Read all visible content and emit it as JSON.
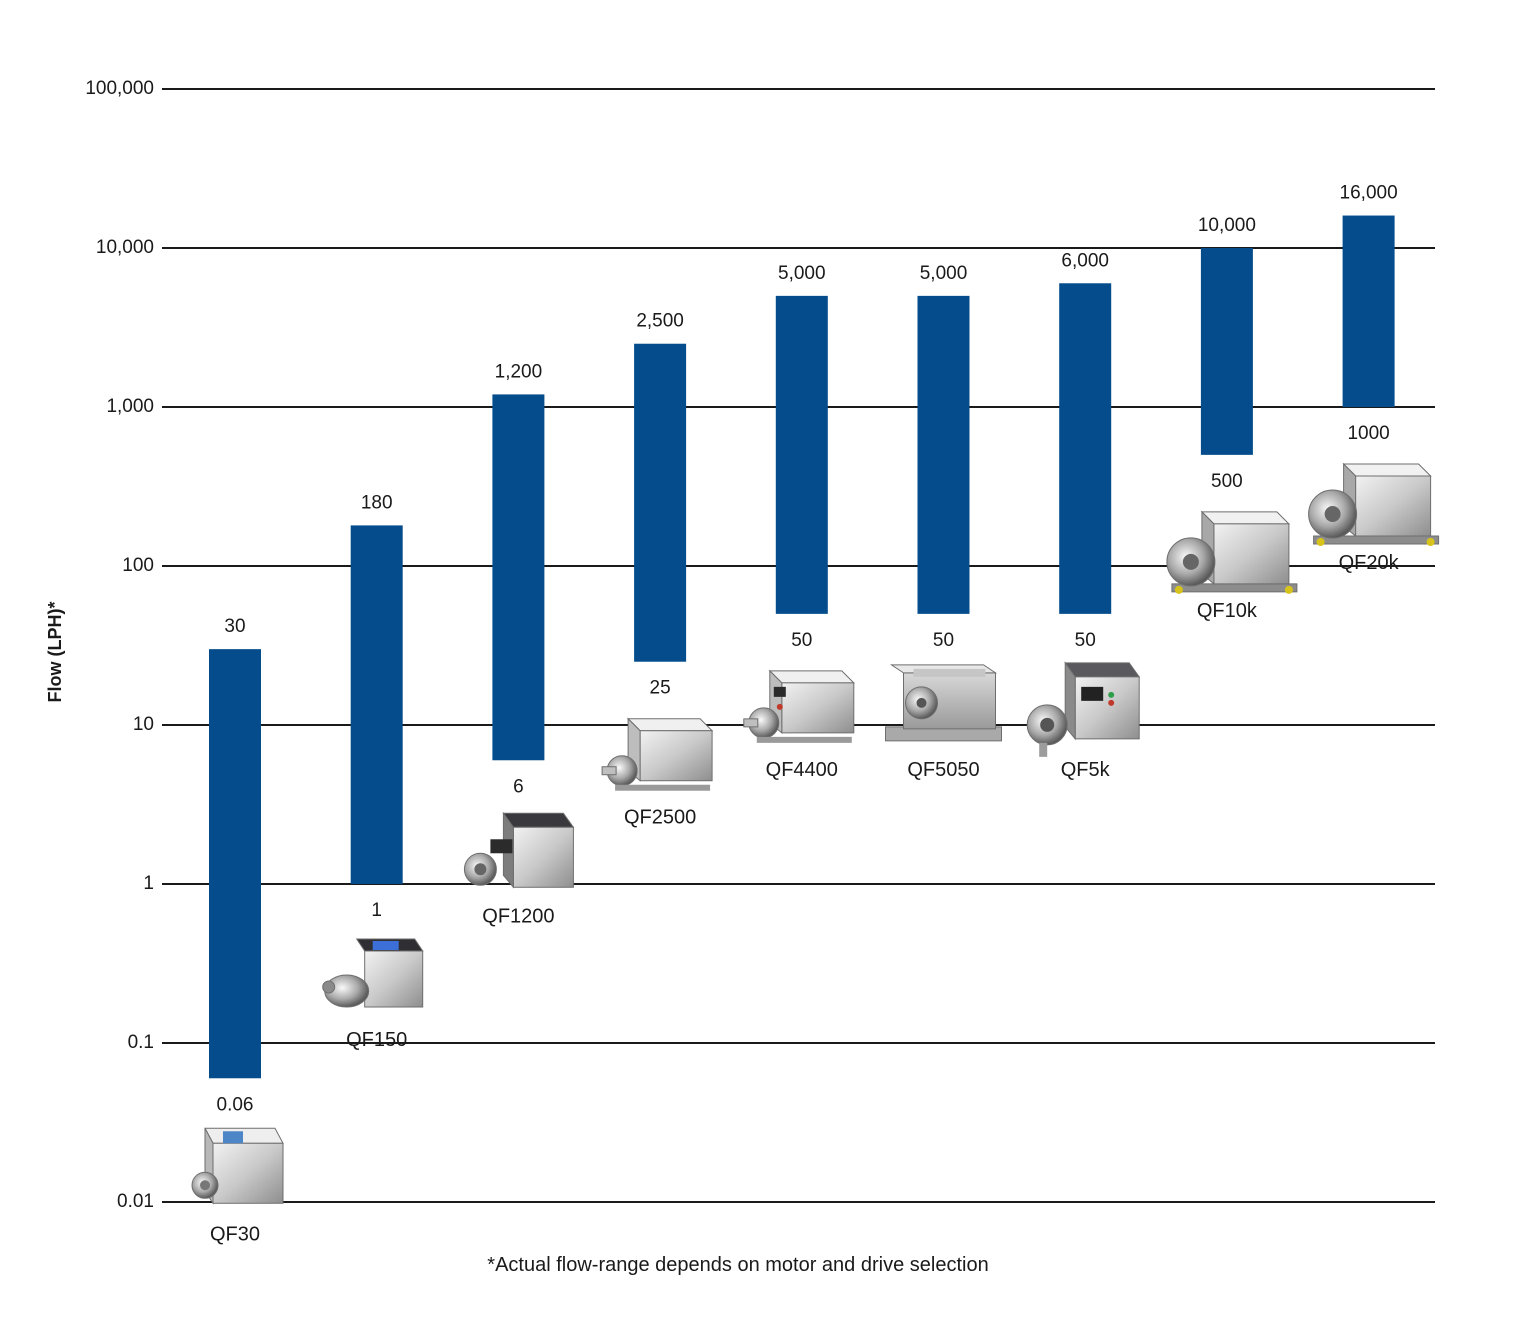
{
  "chart_data": {
    "type": "bar",
    "subtype": "floating-range",
    "y_scale": "log",
    "ylabel": "Flow (LPH)*",
    "ylim": [
      0.01,
      100000
    ],
    "y_ticks": [
      {
        "value": 0.01,
        "label": "0.01"
      },
      {
        "value": 0.1,
        "label": "0.1"
      },
      {
        "value": 1,
        "label": "1"
      },
      {
        "value": 10,
        "label": "10"
      },
      {
        "value": 100,
        "label": "100"
      },
      {
        "value": 1000,
        "label": "1,000"
      },
      {
        "value": 10000,
        "label": "10,000"
      },
      {
        "value": 100000,
        "label": "100,000"
      }
    ],
    "grid": true,
    "bar_color": "#044c8c",
    "footnote": "*Actual flow-range depends on motor and drive selection",
    "categories": [
      "QF30",
      "QF150",
      "QF1200",
      "QF2500",
      "QF4400",
      "QF5050",
      "QF5k",
      "QF10k",
      "QF20k"
    ],
    "ranges": [
      {
        "name": "QF30",
        "min": 0.06,
        "max": 30,
        "min_label": "0.06",
        "max_label": "30",
        "product_icon": "pump-image-qf30"
      },
      {
        "name": "QF150",
        "min": 1,
        "max": 180,
        "min_label": "1",
        "max_label": "180",
        "product_icon": "pump-image-qf150"
      },
      {
        "name": "QF1200",
        "min": 6,
        "max": 1200,
        "min_label": "6",
        "max_label": "1,200",
        "product_icon": "pump-image-qf1200"
      },
      {
        "name": "QF2500",
        "min": 25,
        "max": 2500,
        "min_label": "25",
        "max_label": "2,500",
        "product_icon": "pump-image-qf2500"
      },
      {
        "name": "QF4400",
        "min": 50,
        "max": 5000,
        "min_label": "50",
        "max_label": "5,000",
        "product_icon": "pump-image-qf4400"
      },
      {
        "name": "QF5050",
        "min": 50,
        "max": 5000,
        "min_label": "50",
        "max_label": "5,000",
        "product_icon": "pump-image-qf5050"
      },
      {
        "name": "QF5k",
        "min": 50,
        "max": 6000,
        "min_label": "50",
        "max_label": "6,000",
        "product_icon": "pump-image-qf5k"
      },
      {
        "name": "QF10k",
        "min": 500,
        "max": 10000,
        "min_label": "500",
        "max_label": "10,000",
        "product_icon": "pump-image-qf10k"
      },
      {
        "name": "QF20k",
        "min": 1000,
        "max": 16000,
        "min_label": "1000",
        "max_label": "16,000",
        "product_icon": "pump-image-qf20k"
      }
    ]
  }
}
